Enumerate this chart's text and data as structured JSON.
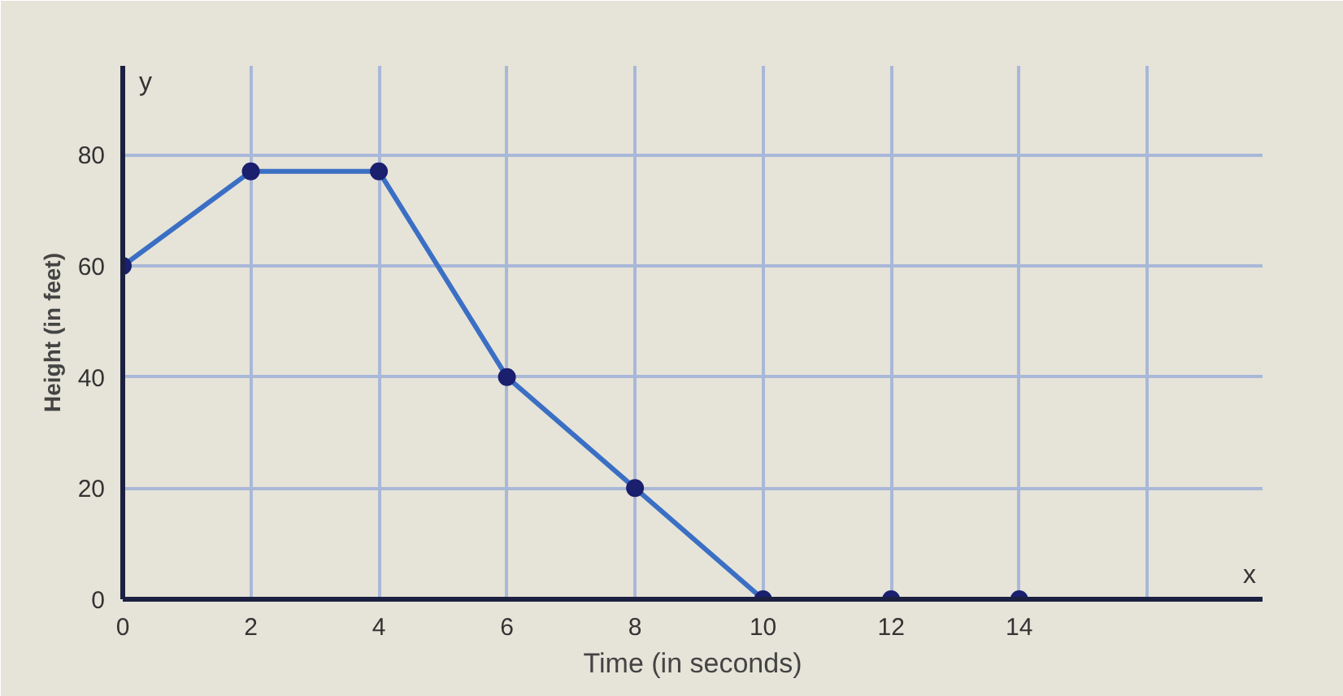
{
  "chart_data": {
    "type": "line",
    "xlabel": "Time (in seconds)",
    "ylabel": "Height (in feet)",
    "x": [
      0,
      2,
      4,
      6,
      8,
      10,
      12,
      14
    ],
    "series": [
      {
        "color": "#3a6fc4",
        "values": [
          60,
          77,
          77,
          40,
          20,
          0,
          0,
          0
        ]
      }
    ],
    "xlim": [
      0,
      17.8
    ],
    "ylim": [
      0,
      96
    ],
    "xticks": [
      0,
      2,
      4,
      6,
      8,
      10,
      12,
      14,
      {
        "value": 16,
        "label": null
      }
    ],
    "yticks": [
      0,
      20,
      40,
      60,
      80
    ],
    "annotations": [
      "y",
      "x"
    ],
    "grid": true,
    "marker": "circle",
    "line_style": "solid"
  }
}
